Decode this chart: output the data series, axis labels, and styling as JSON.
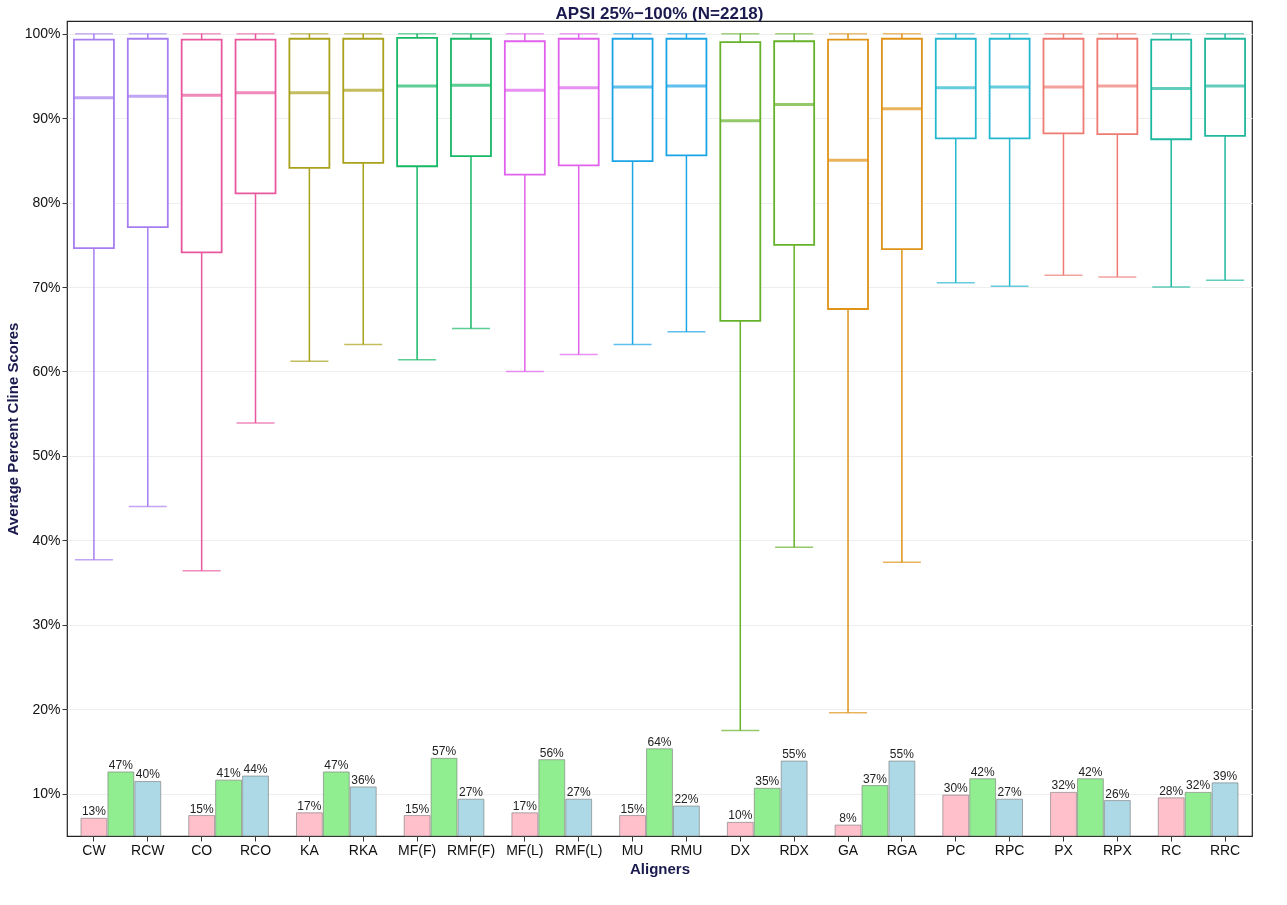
{
  "chart_data": [
    {
      "type": "box",
      "title": "APSI 25%−100% (N=2218)",
      "xlabel": "Aligners",
      "ylabel": "Average Percent  Cline  Scores",
      "categories": [
        "CW",
        "RCW",
        "CO",
        "RCO",
        "KA",
        "RKA",
        "MF(F)",
        "RMF(F)",
        "MF(L)",
        "RMF(L)",
        "MU",
        "RMU",
        "DX",
        "RDX",
        "GA",
        "RGA",
        "PC",
        "RPC",
        "PX",
        "RPX",
        "RC",
        "RRC"
      ],
      "colors": [
        "#a77ef0",
        "#a77ef0",
        "#e8589e",
        "#e8589e",
        "#aaa11b",
        "#aaa11b",
        "#17b866",
        "#17b866",
        "#e062ec",
        "#e062ec",
        "#1ba4e6",
        "#1ba4e6",
        "#66b22a",
        "#66b22a",
        "#df9317",
        "#df9317",
        "#26b8d0",
        "#26b8d0",
        "#ee7a72",
        "#ee7a72",
        "#1fb89f",
        "#1fb89f"
      ],
      "boxes": [
        {
          "low": 37.7,
          "q1": 74.6,
          "median": 92.4,
          "q3": 99.3,
          "high": 100
        },
        {
          "low": 44.0,
          "q1": 77.1,
          "median": 92.6,
          "q3": 99.4,
          "high": 100
        },
        {
          "low": 36.4,
          "q1": 74.1,
          "median": 92.7,
          "q3": 99.3,
          "high": 100
        },
        {
          "low": 53.9,
          "q1": 81.1,
          "median": 93.0,
          "q3": 99.3,
          "high": 100
        },
        {
          "low": 61.2,
          "q1": 84.1,
          "median": 93.0,
          "q3": 99.4,
          "high": 100
        },
        {
          "low": 63.2,
          "q1": 84.7,
          "median": 93.3,
          "q3": 99.4,
          "high": 100
        },
        {
          "low": 61.4,
          "q1": 84.3,
          "median": 93.8,
          "q3": 99.5,
          "high": 100
        },
        {
          "low": 65.1,
          "q1": 85.5,
          "median": 93.9,
          "q3": 99.4,
          "high": 100
        },
        {
          "low": 60.0,
          "q1": 83.3,
          "median": 93.3,
          "q3": 99.1,
          "high": 100
        },
        {
          "low": 62.0,
          "q1": 84.4,
          "median": 93.6,
          "q3": 99.4,
          "high": 100
        },
        {
          "low": 63.2,
          "q1": 84.9,
          "median": 93.7,
          "q3": 99.4,
          "high": 100
        },
        {
          "low": 64.7,
          "q1": 85.6,
          "median": 93.8,
          "q3": 99.4,
          "high": 100
        },
        {
          "low": 17.5,
          "q1": 66.0,
          "median": 89.7,
          "q3": 99.0,
          "high": 100
        },
        {
          "low": 39.2,
          "q1": 75.0,
          "median": 91.6,
          "q3": 99.1,
          "high": 100
        },
        {
          "low": 19.6,
          "q1": 67.4,
          "median": 85.0,
          "q3": 99.3,
          "high": 100
        },
        {
          "low": 37.4,
          "q1": 74.5,
          "median": 91.1,
          "q3": 99.4,
          "high": 100
        },
        {
          "low": 70.5,
          "q1": 87.6,
          "median": 93.6,
          "q3": 99.4,
          "high": 100
        },
        {
          "low": 70.1,
          "q1": 87.6,
          "median": 93.7,
          "q3": 99.4,
          "high": 100
        },
        {
          "low": 71.4,
          "q1": 88.2,
          "median": 93.7,
          "q3": 99.4,
          "high": 100
        },
        {
          "low": 71.2,
          "q1": 88.1,
          "median": 93.8,
          "q3": 99.4,
          "high": 100
        },
        {
          "low": 70.0,
          "q1": 87.5,
          "median": 93.5,
          "q3": 99.3,
          "high": 100
        },
        {
          "low": 70.8,
          "q1": 87.9,
          "median": 93.8,
          "q3": 99.4,
          "high": 100
        }
      ],
      "ylim": [
        5,
        101.5
      ],
      "yticks": [
        {
          "value": 10,
          "label": "10%"
        },
        {
          "value": 20,
          "label": "20%"
        },
        {
          "value": 30,
          "label": "30%"
        },
        {
          "value": 40,
          "label": "40%"
        },
        {
          "value": 50,
          "label": "50%"
        },
        {
          "value": 60,
          "label": "60%"
        },
        {
          "value": 70,
          "label": "70%"
        },
        {
          "value": 80,
          "label": "80%"
        },
        {
          "value": 90,
          "label": "90%"
        },
        {
          "value": 100,
          "label": "100%"
        }
      ],
      "grid": "y"
    },
    {
      "type": "bar",
      "categories": [
        null,
        null,
        null,
        null,
        null,
        null,
        null,
        null,
        null,
        null,
        null
      ],
      "series": [
        {
          "color": "#ffc0cb",
          "values": [
            13,
            15,
            17,
            15,
            17,
            15,
            10,
            8,
            30,
            32,
            28
          ],
          "value_labels": [
            "13%",
            "15%",
            "17%",
            "15%",
            "17%",
            "15%",
            "10%",
            "8%",
            "30%",
            "32%",
            "28%"
          ]
        },
        {
          "color": "#90ee90",
          "values": [
            47,
            41,
            47,
            57,
            56,
            64,
            35,
            37,
            42,
            42,
            32
          ],
          "value_labels": [
            "47%",
            "41%",
            "47%",
            "57%",
            "56%",
            "64%",
            "35%",
            "37%",
            "42%",
            "42%",
            "32%"
          ]
        },
        {
          "color": "#add8e6",
          "values": [
            40,
            44,
            36,
            27,
            27,
            22,
            55,
            55,
            27,
            26,
            39
          ],
          "value_labels": [
            "40%",
            "44%",
            "36%",
            "27%",
            "27%",
            "22%",
            "55%",
            "55%",
            "27%",
            "26%",
            "39%"
          ]
        }
      ]
    }
  ]
}
